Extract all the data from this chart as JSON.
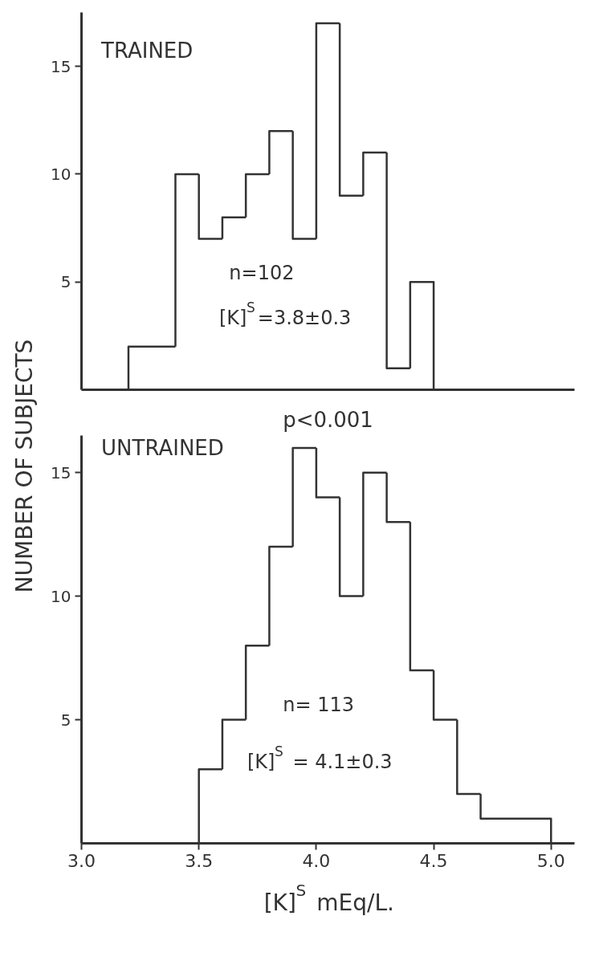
{
  "chart_data": [
    {
      "type": "histogram",
      "title": "TRAINED",
      "ylabel": "NUMBER OF SUBJECTS",
      "annotations": [
        "n=102",
        "[K]$^{S}$=3.8±0.3"
      ],
      "bins": [
        3.2,
        3.4,
        3.5,
        3.6,
        3.7,
        3.8,
        3.9,
        4.0,
        4.1,
        4.2,
        4.3,
        4.4,
        4.5
      ],
      "values": [
        2,
        10,
        7,
        8,
        10,
        12,
        7,
        17,
        9,
        11,
        1,
        5
      ],
      "color": "#333333",
      "xlim": [
        3.0,
        5.1
      ],
      "ylim": [
        0,
        17.5
      ],
      "yticks": [
        5,
        10,
        15
      ],
      "tick_labels": "y"
    },
    {
      "type": "histogram",
      "title": "UNTRAINED",
      "subtitle": "p<0.001",
      "xlabel": "[K]$^{S}$ mEq/L.",
      "annotations": [
        "n= 113",
        "[K]$^{S}$ = 4.1±0.3"
      ],
      "bins": [
        3.5,
        3.6,
        3.7,
        3.8,
        3.9,
        4.0,
        4.1,
        4.2,
        4.3,
        4.4,
        4.5,
        4.6,
        4.7,
        5.0
      ],
      "values": [
        3,
        5,
        8,
        12,
        16,
        14,
        10,
        15,
        13,
        7,
        5,
        2,
        1
      ],
      "color": "#333333",
      "xlim": [
        3.0,
        5.1
      ],
      "ylim": [
        0,
        16.5
      ],
      "xticks": [
        {
          "value": 3.0,
          "label": "3.0"
        },
        {
          "value": 3.5,
          "label": "3.5"
        },
        {
          "value": 4.0,
          "label": "4.0"
        },
        {
          "value": 4.5,
          "label": "4.5"
        },
        {
          "value": 5.0,
          "label": "5.0"
        }
      ],
      "yticks": [
        5,
        10,
        15
      ]
    }
  ]
}
